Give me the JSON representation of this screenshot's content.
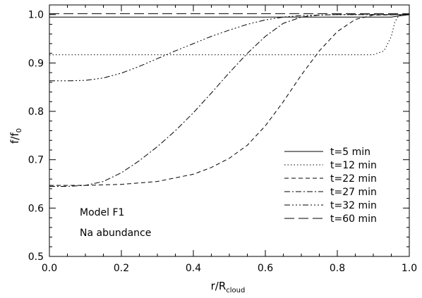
{
  "chart_data": {
    "type": "line",
    "xlabel": "r/R",
    "xlabel_sub": "cloud",
    "ylabel": "f/f",
    "ylabel_sub": "0",
    "xlim": [
      0.0,
      1.0
    ],
    "ylim": [
      0.5,
      1.02
    ],
    "xticks": [
      0.0,
      0.2,
      0.4,
      0.6,
      0.8,
      1.0
    ],
    "xtick_labels": [
      "0.0",
      "0.2",
      "0.4",
      "0.6",
      "0.8",
      "1.0"
    ],
    "yticks": [
      0.5,
      0.6,
      0.7,
      0.8,
      0.9,
      1.0
    ],
    "ytick_labels": [
      "0.5",
      "0.6",
      "0.7",
      "0.8",
      "0.9",
      "1.0"
    ],
    "grid": false,
    "legend_position": "lower-right",
    "annotations": [
      "Model F1",
      "Na abundance"
    ],
    "series": [
      {
        "name": "t=5 min",
        "dash": "solid",
        "x": [
          0.0,
          0.2,
          0.4,
          0.6,
          0.8,
          0.9,
          0.95,
          0.97,
          1.0
        ],
        "y": [
          0.995,
          0.995,
          0.995,
          0.995,
          0.995,
          0.995,
          0.995,
          0.997,
          1.0
        ]
      },
      {
        "name": "t=12 min",
        "dash": "dotted",
        "x": [
          0.0,
          0.2,
          0.4,
          0.6,
          0.8,
          0.9,
          0.93,
          0.95,
          0.96,
          0.97,
          0.98,
          1.0
        ],
        "y": [
          0.917,
          0.917,
          0.917,
          0.917,
          0.917,
          0.917,
          0.925,
          0.955,
          0.985,
          0.997,
          1.0,
          1.0
        ]
      },
      {
        "name": "t=22 min",
        "dash": "dashed",
        "x": [
          0.0,
          0.1,
          0.2,
          0.3,
          0.4,
          0.45,
          0.5,
          0.55,
          0.6,
          0.65,
          0.7,
          0.75,
          0.8,
          0.85,
          0.9,
          1.0
        ],
        "y": [
          0.647,
          0.647,
          0.649,
          0.655,
          0.67,
          0.684,
          0.703,
          0.73,
          0.77,
          0.82,
          0.875,
          0.925,
          0.965,
          0.99,
          0.999,
          1.0
        ]
      },
      {
        "name": "t=27 min",
        "dash": "dashdot",
        "x": [
          0.0,
          0.05,
          0.1,
          0.15,
          0.2,
          0.25,
          0.3,
          0.35,
          0.4,
          0.45,
          0.5,
          0.55,
          0.6,
          0.65,
          0.7,
          0.75,
          0.8,
          0.9,
          1.0
        ],
        "y": [
          0.645,
          0.645,
          0.647,
          0.655,
          0.673,
          0.698,
          0.727,
          0.76,
          0.797,
          0.838,
          0.88,
          0.92,
          0.955,
          0.982,
          0.995,
          0.999,
          1.0,
          1.0,
          1.0
        ]
      },
      {
        "name": "t=32 min",
        "dash": "dashdotdotdot",
        "x": [
          0.0,
          0.05,
          0.1,
          0.15,
          0.2,
          0.25,
          0.3,
          0.35,
          0.4,
          0.45,
          0.5,
          0.55,
          0.6,
          0.65,
          0.7,
          0.8,
          0.9,
          1.0
        ],
        "y": [
          0.863,
          0.863,
          0.864,
          0.869,
          0.879,
          0.893,
          0.909,
          0.925,
          0.94,
          0.955,
          0.968,
          0.98,
          0.989,
          0.995,
          0.998,
          1.0,
          1.0,
          1.0
        ]
      },
      {
        "name": "t=60 min",
        "dash": "longdash",
        "x": [
          0.0,
          0.5,
          1.0
        ],
        "y": [
          1.002,
          1.002,
          1.002
        ]
      }
    ]
  }
}
